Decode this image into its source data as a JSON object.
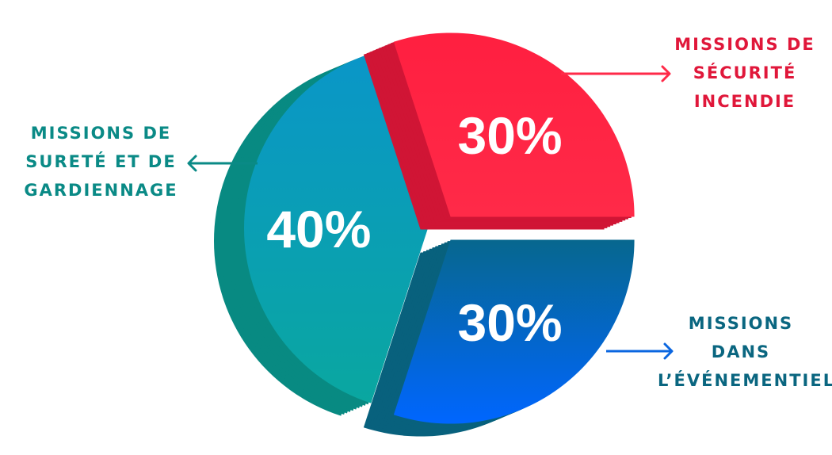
{
  "chart_data": {
    "type": "pie",
    "style": "3d-exploded",
    "slices": [
      {
        "label": "MISSIONS DE SURETÉ ET DE GARDIENNAGE",
        "value": 40,
        "display": "40%",
        "color": "#0aa7a0",
        "color_top": "#0a96c8",
        "side_color": "#088a82"
      },
      {
        "label": "MISSIONS DE SÉCURITÉ INCENDIE",
        "value": 30,
        "display": "30%",
        "color": "#ff2a48",
        "color_top": "#ff1f40",
        "side_color": "#d01535"
      },
      {
        "label": "MISSIONS DANS L’ÉVÉNEMENTIEL",
        "value": 30,
        "display": "30%",
        "color": "#0066ff",
        "color_top": "#07678e",
        "side_color": "#08617d"
      }
    ],
    "label_colors": [
      "#0a8a86",
      "#e0173a",
      "#0a6680"
    ],
    "arrow_colors": [
      "#0a8a86",
      "#ff2a48",
      "#0a66e0"
    ]
  }
}
